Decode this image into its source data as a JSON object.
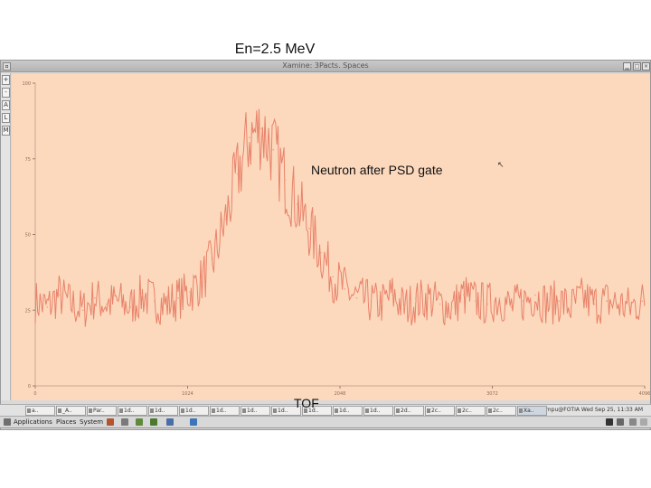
{
  "slide": {
    "title": "En=2.5 MeV",
    "annotation": "Neutron after PSD gate",
    "xlabel": "TOF"
  },
  "window": {
    "title": "Xamine: 3Pacts. Spaces"
  },
  "tools": [
    "+",
    "-",
    "A",
    "L",
    "M"
  ],
  "taskbar": {
    "tasks": [
      "a..",
      "_A..",
      "Par..",
      "1d..",
      "1d..",
      "1d..",
      "1d..",
      "1d..",
      "1d..",
      "1d..",
      "1d..",
      "1d..",
      "2d..",
      "2c..",
      "2c..",
      "2c..",
      "Xa.."
    ],
    "tray": "umpu@FOTIA  Wed Sep 25, 11:33 AM"
  },
  "panel": {
    "applications": "Applications",
    "places": "Places",
    "system": "System"
  },
  "colors": {
    "plot_bg": "#fcd9bd",
    "trace": "#e8826a",
    "trace_light": "#f0a88a"
  },
  "chart_data": {
    "type": "line",
    "title": "",
    "xlabel": "TOF",
    "ylabel": "",
    "xlim": [
      0,
      4096
    ],
    "ylim": [
      0,
      100
    ],
    "xticks": [
      "0",
      "1024",
      "2048",
      "3072",
      "4096"
    ],
    "yticks": [
      "0",
      "25",
      "50",
      "75",
      "100"
    ],
    "series": [
      {
        "description_points": "counts",
        "x": [
          0,
          80,
          160,
          240,
          320,
          400,
          480,
          560,
          640,
          720,
          800,
          880,
          960,
          1040,
          1120,
          1200,
          1280,
          1360,
          1440,
          1520,
          1600,
          1680,
          1760,
          1840,
          1920,
          2000,
          2080,
          2160,
          2240,
          2320,
          2400,
          2480,
          2560,
          2640,
          2720,
          2800,
          2880,
          2960,
          3040,
          3120,
          3200,
          3280,
          3360,
          3440,
          3520,
          3600,
          3680,
          3760,
          3840,
          3920,
          4000,
          4080
        ],
        "y": [
          28,
          26,
          30,
          27,
          25,
          29,
          27,
          28,
          26,
          30,
          28,
          27,
          29,
          31,
          35,
          42,
          55,
          70,
          82,
          85,
          78,
          68,
          60,
          52,
          44,
          36,
          32,
          29,
          28,
          27,
          30,
          26,
          28,
          29,
          27,
          26,
          30,
          28,
          27,
          29,
          26,
          28,
          30,
          27,
          28,
          26,
          29,
          27,
          28,
          27,
          26,
          28
        ]
      }
    ]
  }
}
